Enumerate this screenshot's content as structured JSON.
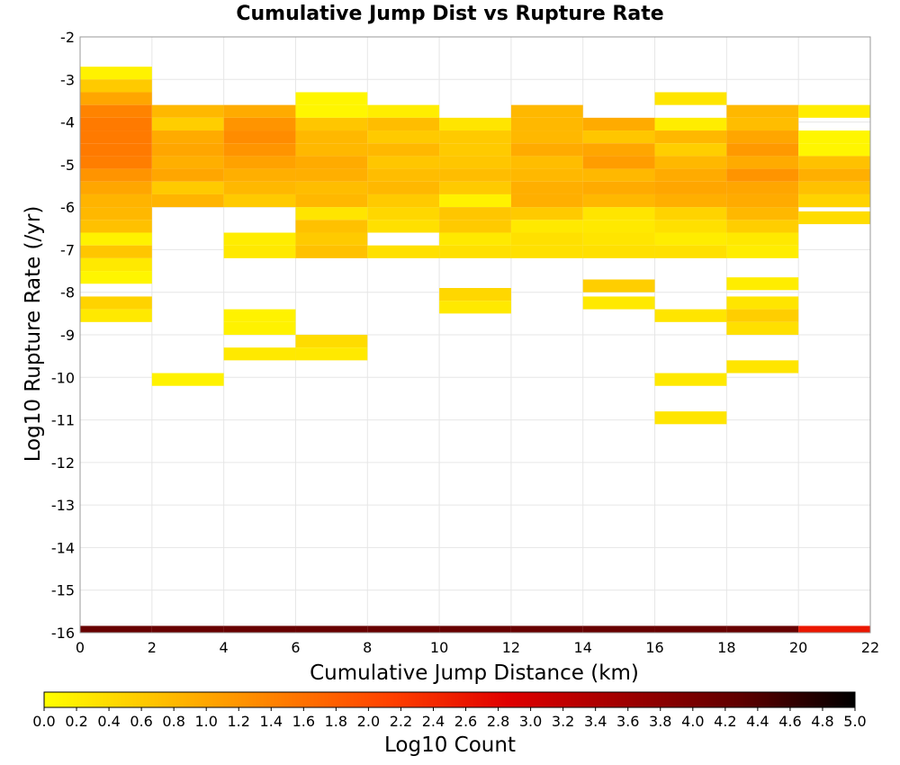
{
  "chart_data": {
    "type": "heatmap",
    "title": "Cumulative Jump Dist vs Rupture Rate",
    "xlabel": "Cumulative Jump Distance (km)",
    "ylabel": "Log10 Rupture Rate (/yr)",
    "xlim": [
      0,
      22
    ],
    "ylim": [
      -16,
      -2
    ],
    "x_ticks": [
      "0",
      "2",
      "4",
      "6",
      "8",
      "10",
      "12",
      "14",
      "16",
      "18",
      "20",
      "22"
    ],
    "y_ticks": [
      "-2",
      "-3",
      "-4",
      "-5",
      "-6",
      "-7",
      "-8",
      "-9",
      "-10",
      "-11",
      "-12",
      "-13",
      "-14",
      "-15",
      "-16"
    ],
    "x_bin_width": 2,
    "y_bin_width": 0.3,
    "colorbar": {
      "label": "Log10 Count",
      "range": [
        0,
        5
      ],
      "ticks": [
        "0.0",
        "0.2",
        "0.4",
        "0.6",
        "0.8",
        "1.0",
        "1.2",
        "1.4",
        "1.6",
        "1.8",
        "2.0",
        "2.2",
        "2.4",
        "2.6",
        "2.8",
        "3.0",
        "3.2",
        "3.4",
        "3.6",
        "3.8",
        "4.0",
        "4.2",
        "4.4",
        "4.6",
        "4.8",
        "5.0"
      ],
      "colors": [
        "#ffff00",
        "#ffc000",
        "#ff8000",
        "#ff4000",
        "#e00000",
        "#a00000",
        "#600000",
        "#000000"
      ]
    },
    "grid": true,
    "columns": [
      {
        "x": 0,
        "cells": [
          [
            -2.85,
            0.15
          ],
          [
            -3.15,
            0.6
          ],
          [
            -3.45,
            1.0
          ],
          [
            -3.75,
            1.4
          ],
          [
            -4.05,
            1.5
          ],
          [
            -4.35,
            1.5
          ],
          [
            -4.65,
            1.5
          ],
          [
            -4.95,
            1.45
          ],
          [
            -5.25,
            1.2
          ],
          [
            -5.55,
            1.0
          ],
          [
            -5.85,
            0.85
          ],
          [
            -6.15,
            0.8
          ],
          [
            -6.45,
            0.7
          ],
          [
            -6.75,
            0.15
          ],
          [
            -7.05,
            0.65
          ],
          [
            -7.35,
            0.25
          ],
          [
            -7.65,
            0.1
          ],
          [
            -8.25,
            0.5
          ],
          [
            -8.55,
            0.25
          ],
          [
            -15.99,
            4.2
          ]
        ]
      },
      {
        "x": 2,
        "cells": [
          [
            -3.75,
            0.8
          ],
          [
            -4.05,
            0.55
          ],
          [
            -4.35,
            0.95
          ],
          [
            -4.65,
            1.0
          ],
          [
            -4.95,
            0.9
          ],
          [
            -5.25,
            1.0
          ],
          [
            -5.55,
            0.6
          ],
          [
            -5.85,
            0.85
          ],
          [
            -10.05,
            0.15
          ],
          [
            -15.99,
            4.2
          ]
        ]
      },
      {
        "x": 4,
        "cells": [
          [
            -3.75,
            0.95
          ],
          [
            -4.05,
            1.2
          ],
          [
            -4.35,
            1.3
          ],
          [
            -4.65,
            1.2
          ],
          [
            -4.95,
            1.05
          ],
          [
            -5.25,
            0.9
          ],
          [
            -5.55,
            0.8
          ],
          [
            -5.85,
            0.6
          ],
          [
            -6.75,
            0.2
          ],
          [
            -7.05,
            0.25
          ],
          [
            -8.55,
            0.15
          ],
          [
            -8.85,
            0.15
          ],
          [
            -9.45,
            0.25
          ],
          [
            -15.99,
            4.2
          ]
        ]
      },
      {
        "x": 6,
        "cells": [
          [
            -3.45,
            0.1
          ],
          [
            -3.75,
            0.1
          ],
          [
            -4.05,
            0.65
          ],
          [
            -4.35,
            0.8
          ],
          [
            -4.65,
            0.8
          ],
          [
            -4.95,
            0.95
          ],
          [
            -5.25,
            0.9
          ],
          [
            -5.55,
            0.75
          ],
          [
            -5.85,
            0.8
          ],
          [
            -6.15,
            0.3
          ],
          [
            -6.45,
            0.7
          ],
          [
            -6.75,
            0.6
          ],
          [
            -7.05,
            0.7
          ],
          [
            -9.15,
            0.4
          ],
          [
            -9.45,
            0.25
          ],
          [
            -15.99,
            4.2
          ]
        ]
      },
      {
        "x": 8,
        "cells": [
          [
            -3.75,
            0.2
          ],
          [
            -4.05,
            0.75
          ],
          [
            -4.35,
            0.6
          ],
          [
            -4.65,
            0.8
          ],
          [
            -4.95,
            0.65
          ],
          [
            -5.25,
            0.75
          ],
          [
            -5.55,
            0.8
          ],
          [
            -5.85,
            0.6
          ],
          [
            -6.15,
            0.45
          ],
          [
            -6.45,
            0.35
          ],
          [
            -7.05,
            0.35
          ],
          [
            -15.99,
            4.2
          ]
        ]
      },
      {
        "x": 10,
        "cells": [
          [
            -4.05,
            0.3
          ],
          [
            -4.35,
            0.6
          ],
          [
            -4.65,
            0.6
          ],
          [
            -4.95,
            0.65
          ],
          [
            -5.25,
            0.75
          ],
          [
            -5.55,
            0.6
          ],
          [
            -5.85,
            0.15
          ],
          [
            -6.15,
            0.65
          ],
          [
            -6.45,
            0.6
          ],
          [
            -6.75,
            0.25
          ],
          [
            -7.05,
            0.35
          ],
          [
            -8.05,
            0.45
          ],
          [
            -8.35,
            0.25
          ],
          [
            -15.99,
            4.2
          ]
        ]
      },
      {
        "x": 12,
        "cells": [
          [
            -3.75,
            0.8
          ],
          [
            -4.05,
            0.8
          ],
          [
            -4.35,
            0.8
          ],
          [
            -4.65,
            0.95
          ],
          [
            -4.95,
            0.75
          ],
          [
            -5.25,
            0.8
          ],
          [
            -5.55,
            0.9
          ],
          [
            -5.85,
            0.9
          ],
          [
            -6.15,
            0.6
          ],
          [
            -6.45,
            0.25
          ],
          [
            -6.75,
            0.35
          ],
          [
            -7.05,
            0.35
          ],
          [
            -15.99,
            4.2
          ]
        ]
      },
      {
        "x": 14,
        "cells": [
          [
            -4.05,
            0.95
          ],
          [
            -4.35,
            0.65
          ],
          [
            -4.65,
            1.0
          ],
          [
            -4.95,
            1.1
          ],
          [
            -5.25,
            0.8
          ],
          [
            -5.55,
            0.95
          ],
          [
            -5.85,
            0.8
          ],
          [
            -6.15,
            0.3
          ],
          [
            -6.45,
            0.25
          ],
          [
            -6.75,
            0.3
          ],
          [
            -7.05,
            0.35
          ],
          [
            -7.85,
            0.55
          ],
          [
            -8.25,
            0.25
          ],
          [
            -15.99,
            4.2
          ]
        ]
      },
      {
        "x": 16,
        "cells": [
          [
            -3.45,
            0.3
          ],
          [
            -4.05,
            0.2
          ],
          [
            -4.35,
            0.8
          ],
          [
            -4.65,
            0.55
          ],
          [
            -4.95,
            0.8
          ],
          [
            -5.25,
            0.95
          ],
          [
            -5.55,
            1.0
          ],
          [
            -5.85,
            0.9
          ],
          [
            -6.15,
            0.5
          ],
          [
            -6.45,
            0.35
          ],
          [
            -6.75,
            0.2
          ],
          [
            -7.05,
            0.35
          ],
          [
            -8.55,
            0.3
          ],
          [
            -10.05,
            0.25
          ],
          [
            -10.95,
            0.3
          ],
          [
            -15.99,
            4.2
          ]
        ]
      },
      {
        "x": 18,
        "cells": [
          [
            -3.75,
            0.8
          ],
          [
            -4.05,
            0.75
          ],
          [
            -4.35,
            1.0
          ],
          [
            -4.65,
            1.15
          ],
          [
            -4.95,
            0.95
          ],
          [
            -5.25,
            1.2
          ],
          [
            -5.55,
            1.0
          ],
          [
            -5.85,
            0.95
          ],
          [
            -6.15,
            0.8
          ],
          [
            -6.45,
            0.55
          ],
          [
            -6.75,
            0.25
          ],
          [
            -7.05,
            0.2
          ],
          [
            -7.8,
            0.2
          ],
          [
            -8.25,
            0.3
          ],
          [
            -8.55,
            0.55
          ],
          [
            -8.85,
            0.35
          ],
          [
            -9.75,
            0.3
          ],
          [
            -15.99,
            4.2
          ]
        ]
      },
      {
        "x": 20,
        "cells": [
          [
            -3.75,
            0.2
          ],
          [
            -4.35,
            0.1
          ],
          [
            -4.65,
            0.1
          ],
          [
            -4.95,
            0.7
          ],
          [
            -5.25,
            0.9
          ],
          [
            -5.55,
            0.7
          ],
          [
            -5.85,
            0.5
          ],
          [
            -6.25,
            0.4
          ],
          [
            -15.99,
            2.6
          ]
        ]
      }
    ]
  }
}
